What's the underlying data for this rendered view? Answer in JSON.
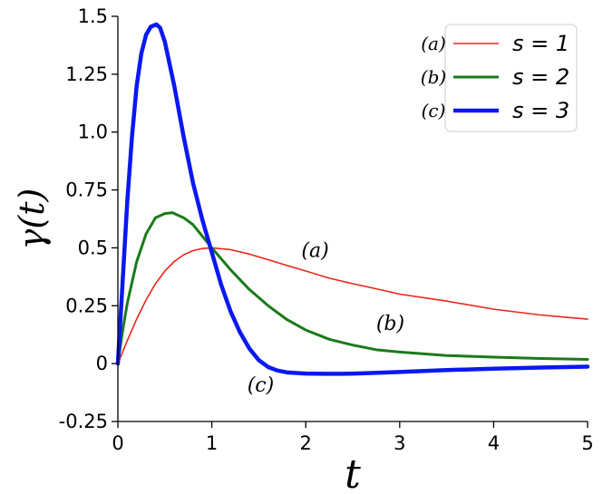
{
  "chart_data": {
    "type": "line",
    "xlabel": "t",
    "ylabel": "γ(t)",
    "xlim": [
      0,
      5
    ],
    "ylim": [
      -0.25,
      1.5
    ],
    "x_ticks": [
      0,
      1,
      2,
      3,
      4,
      5
    ],
    "x_tick_labels": [
      "0",
      "1",
      "2",
      "3",
      "4",
      "5"
    ],
    "y_ticks": [
      -0.25,
      0,
      0.25,
      0.5,
      0.75,
      1.0,
      1.25,
      1.5
    ],
    "y_tick_labels": [
      "-0.25",
      "0",
      "0.25",
      "0.5",
      "0.75",
      "1.0",
      "1.25",
      "1.5"
    ],
    "grid": false,
    "legend_position": "top-right",
    "series": [
      {
        "name": "s = 1",
        "tag": "(a)",
        "color": "#e8261c",
        "x": [
          0,
          0.1,
          0.2,
          0.3,
          0.4,
          0.5,
          0.6,
          0.7,
          0.8,
          0.9,
          1.0,
          1.2,
          1.4,
          1.6,
          1.8,
          2.0,
          2.25,
          2.5,
          2.75,
          3.0,
          3.5,
          4.0,
          4.5,
          5.0
        ],
        "values": [
          0,
          0.099,
          0.192,
          0.275,
          0.345,
          0.4,
          0.441,
          0.47,
          0.488,
          0.497,
          0.5,
          0.492,
          0.473,
          0.449,
          0.424,
          0.4,
          0.369,
          0.345,
          0.323,
          0.3,
          0.27,
          0.235,
          0.21,
          0.192
        ]
      },
      {
        "name": "s = 2",
        "tag": "(b)",
        "color": "#1a7a1a",
        "x": [
          0,
          0.05,
          0.1,
          0.2,
          0.3,
          0.4,
          0.5,
          0.58,
          0.7,
          0.8,
          0.9,
          1.0,
          1.2,
          1.4,
          1.6,
          1.8,
          2.0,
          2.25,
          2.5,
          2.75,
          3.0,
          3.5,
          4.0,
          4.5,
          5.0
        ],
        "values": [
          0,
          0.14,
          0.26,
          0.44,
          0.56,
          0.63,
          0.648,
          0.652,
          0.63,
          0.6,
          0.55,
          0.5,
          0.405,
          0.32,
          0.25,
          0.19,
          0.145,
          0.105,
          0.08,
          0.06,
          0.05,
          0.035,
          0.028,
          0.022,
          0.018
        ]
      },
      {
        "name": "s = 3",
        "tag": "(c)",
        "color": "#0a18f0",
        "x": [
          0,
          0.05,
          0.1,
          0.15,
          0.2,
          0.25,
          0.3,
          0.35,
          0.41,
          0.45,
          0.5,
          0.6,
          0.7,
          0.8,
          0.9,
          1.0,
          1.1,
          1.2,
          1.3,
          1.4,
          1.5,
          1.6,
          1.7,
          1.8,
          2.0,
          2.2,
          2.4,
          2.6,
          3.0,
          3.5,
          4.0,
          4.5,
          5.0
        ],
        "values": [
          0,
          0.35,
          0.7,
          0.98,
          1.2,
          1.34,
          1.42,
          1.455,
          1.465,
          1.45,
          1.39,
          1.2,
          0.98,
          0.78,
          0.62,
          0.48,
          0.34,
          0.225,
          0.135,
          0.065,
          0.015,
          -0.015,
          -0.03,
          -0.038,
          -0.043,
          -0.044,
          -0.044,
          -0.042,
          -0.036,
          -0.028,
          -0.022,
          -0.017,
          -0.013
        ]
      }
    ],
    "annotations": [
      {
        "text": "(a)",
        "x": 2.1,
        "y": 0.46
      },
      {
        "text": "(b)",
        "x": 2.9,
        "y": 0.145
      },
      {
        "text": "(c)",
        "x": 1.52,
        "y": -0.12
      }
    ]
  }
}
